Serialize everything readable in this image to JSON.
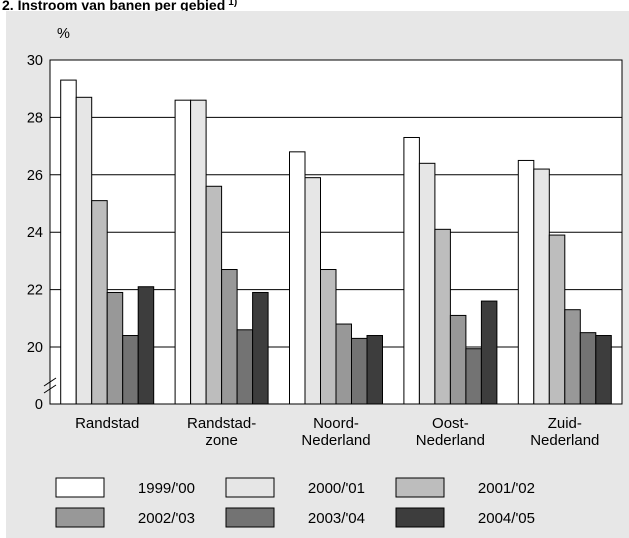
{
  "title": "2. Instroom van banen per gebied",
  "title_note": "1)",
  "chart_data": {
    "type": "bar",
    "title": "2. Instroom van banen per gebied",
    "ylabel": "%",
    "xlabel": "",
    "ylim": [
      0,
      30
    ],
    "axis_break": true,
    "yticks": [
      "0",
      "20",
      "22",
      "24",
      "26",
      "28",
      "30"
    ],
    "grid": true,
    "legend_position": "bottom",
    "categories": [
      [
        "Randstad"
      ],
      [
        "Randstad-",
        "zone"
      ],
      [
        "Noord-",
        "Nederland"
      ],
      [
        "Oost-",
        "Nederland"
      ],
      [
        "Zuid-",
        "Nederland"
      ]
    ],
    "series": [
      {
        "name": "1999/'00",
        "color": "#ffffff",
        "values": [
          29.3,
          28.6,
          26.8,
          27.3,
          26.5
        ]
      },
      {
        "name": "2000/'01",
        "color": "#e6e6e6",
        "values": [
          28.7,
          28.6,
          25.9,
          26.4,
          26.2
        ]
      },
      {
        "name": "2001/'02",
        "color": "#bdbdbd",
        "values": [
          25.1,
          25.6,
          22.7,
          24.1,
          23.9
        ]
      },
      {
        "name": "2002/'03",
        "color": "#989898",
        "values": [
          21.9,
          22.7,
          20.8,
          21.1,
          21.3
        ]
      },
      {
        "name": "2003/'04",
        "color": "#737373",
        "values": [
          20.4,
          20.6,
          20.3,
          19.4,
          20.5
        ]
      },
      {
        "name": "2004/'05",
        "color": "#3d3d3d",
        "values": [
          22.1,
          21.9,
          20.4,
          21.6,
          20.4
        ]
      }
    ]
  }
}
